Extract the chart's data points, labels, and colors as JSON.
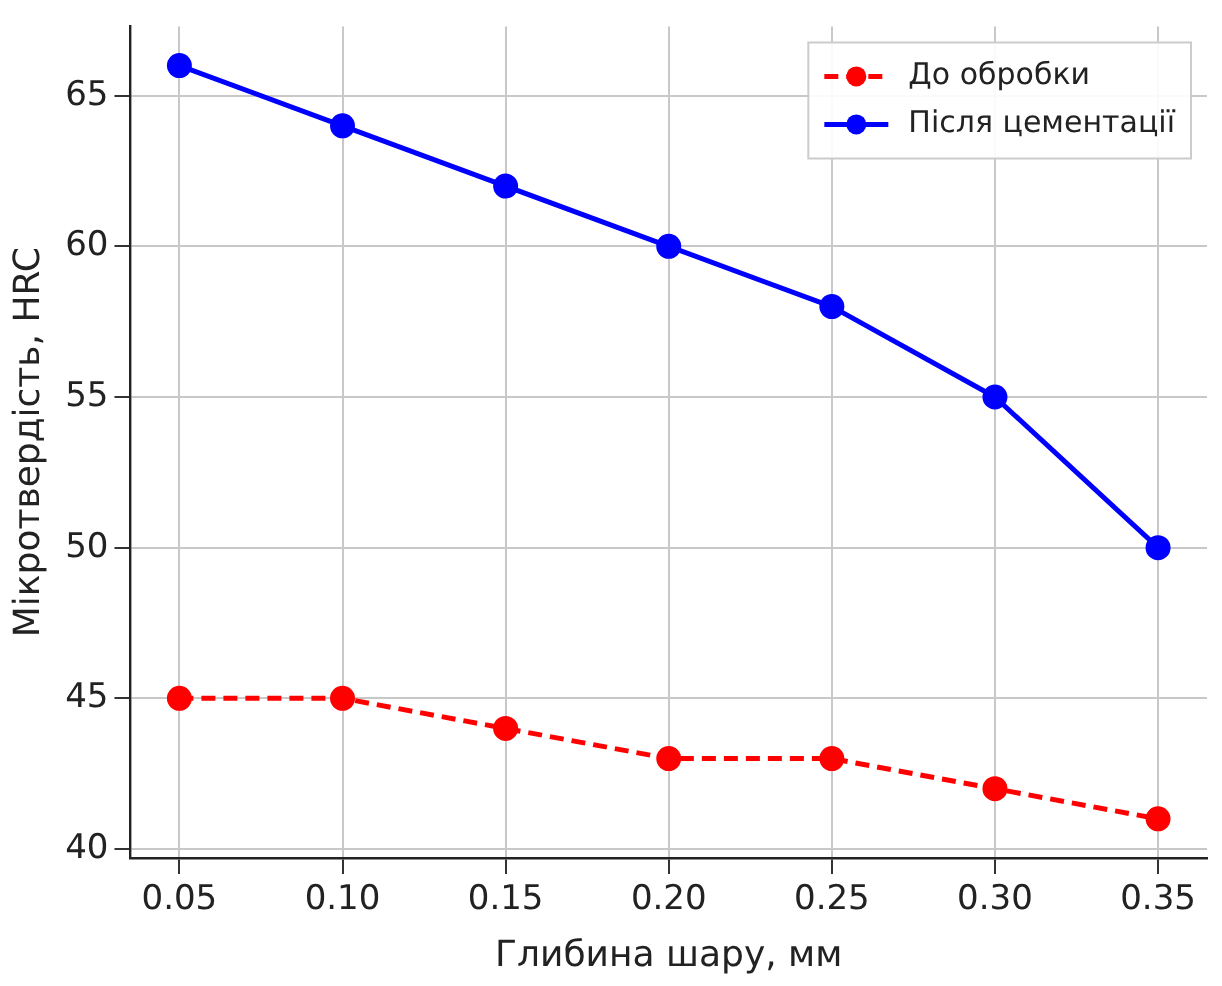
{
  "chart_data": {
    "type": "line",
    "xlabel": "Глибина шару, мм",
    "ylabel": "Мікротвердість, HRC",
    "x": [
      0.05,
      0.1,
      0.15,
      0.2,
      0.25,
      0.3,
      0.35
    ],
    "series": [
      {
        "name": "До обробки",
        "color": "#ff0000",
        "values": [
          45,
          45,
          44,
          43,
          43,
          42,
          41
        ],
        "line_style": "dashed"
      },
      {
        "name": "Після цементації",
        "color": "#0000ff",
        "values": [
          66,
          64,
          62,
          60,
          58,
          55,
          50
        ],
        "line_style": "solid"
      }
    ],
    "xlim": [
      0.035,
      0.365
    ],
    "xticks": [
      {
        "value": 0.05,
        "label": "0.05"
      },
      {
        "value": 0.1,
        "label": "0.10"
      },
      {
        "value": 0.15,
        "label": "0.15"
      },
      {
        "value": 0.2,
        "label": "0.20"
      },
      {
        "value": 0.25,
        "label": "0.25"
      },
      {
        "value": 0.3,
        "label": "0.30"
      },
      {
        "value": 0.35,
        "label": "0.35"
      }
    ],
    "ylim": [
      39.7,
      67.3
    ],
    "yticks": [
      40,
      45,
      50,
      55,
      60,
      65
    ],
    "grid": true,
    "legend": "top right",
    "marker": "circle"
  }
}
